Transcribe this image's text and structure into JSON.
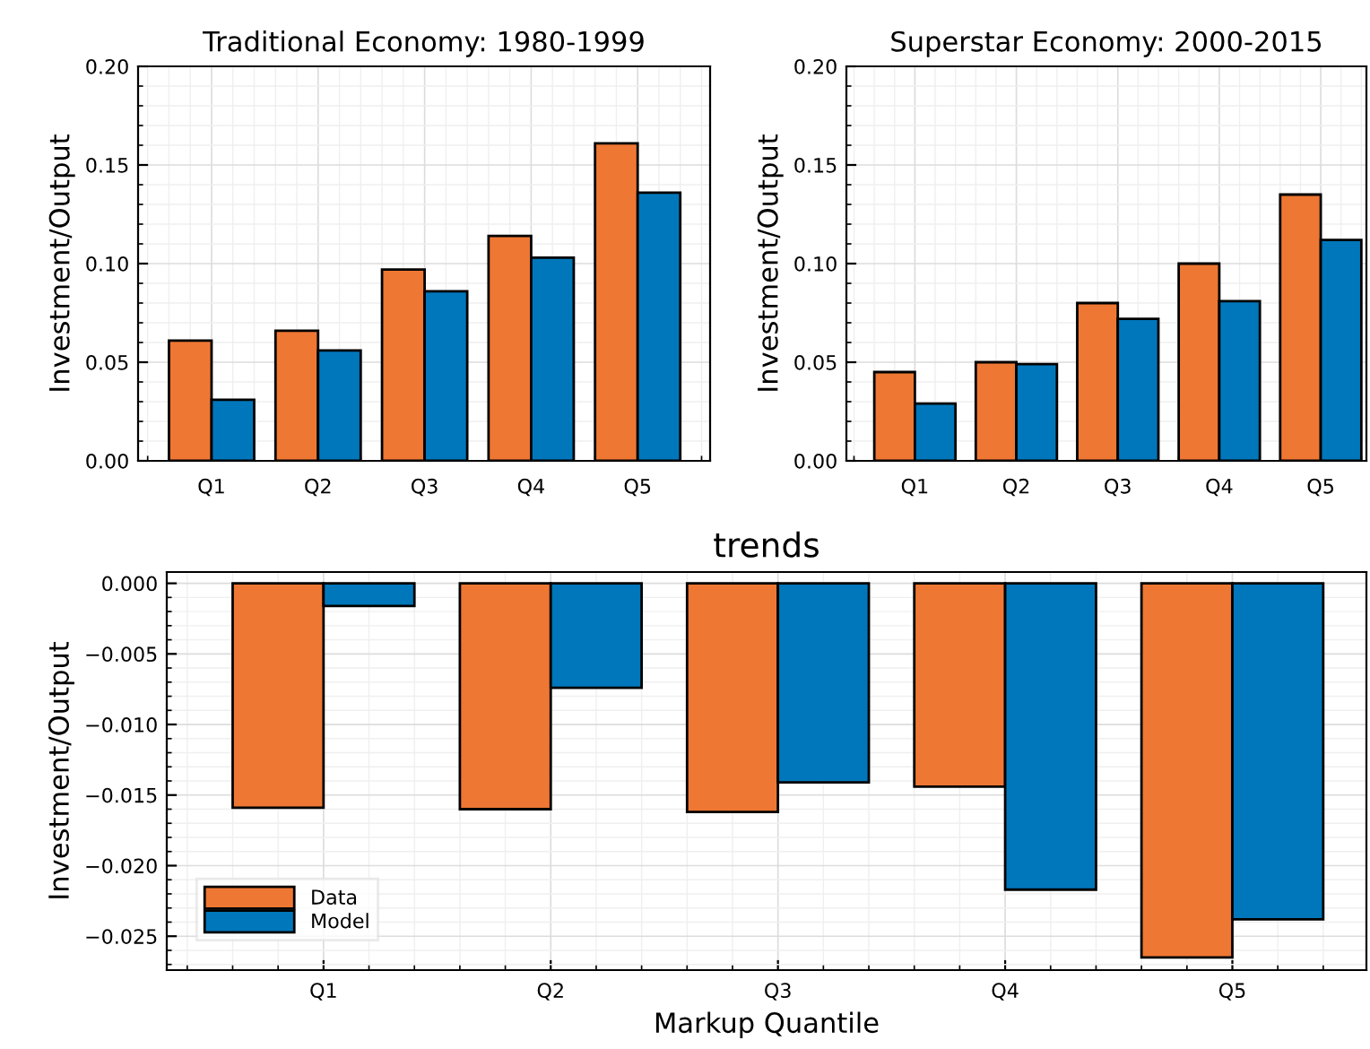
{
  "chart_data": [
    {
      "type": "bar",
      "title": "Traditional Economy: 1980-1999",
      "ylabel": "Investment/Output",
      "categories": [
        "Q1",
        "Q2",
        "Q3",
        "Q4",
        "Q5"
      ],
      "series": [
        {
          "color": "#ee7733",
          "values": [
            0.061,
            0.066,
            0.097,
            0.114,
            0.161
          ]
        },
        {
          "color": "#0077bb",
          "values": [
            0.031,
            0.056,
            0.086,
            0.103,
            0.136
          ]
        }
      ],
      "ylim": [
        0,
        0.2
      ],
      "yticks": [
        {
          "value": 0,
          "label": "0.00"
        },
        {
          "value": 0.05,
          "label": "0.05"
        },
        {
          "value": 0.1,
          "label": "0.10"
        },
        {
          "value": 0.15,
          "label": "0.15"
        },
        {
          "value": 0.2,
          "label": "0.20"
        }
      ],
      "grid": true
    },
    {
      "type": "bar",
      "title": "Superstar Economy: 2000-2015",
      "ylabel": "Investment/Output",
      "categories": [
        "Q1",
        "Q2",
        "Q3",
        "Q4",
        "Q5"
      ],
      "series": [
        {
          "color": "#ee7733",
          "values": [
            0.045,
            0.05,
            0.08,
            0.1,
            0.135
          ]
        },
        {
          "color": "#0077bb",
          "values": [
            0.029,
            0.049,
            0.072,
            0.081,
            0.112
          ]
        }
      ],
      "ylim": [
        0,
        0.2
      ],
      "yticks": [
        {
          "value": 0,
          "label": "0.00"
        },
        {
          "value": 0.05,
          "label": "0.05"
        },
        {
          "value": 0.1,
          "label": "0.10"
        },
        {
          "value": 0.15,
          "label": "0.15"
        },
        {
          "value": 0.2,
          "label": "0.20"
        }
      ],
      "grid": true
    },
    {
      "type": "bar",
      "title": "trends",
      "xlabel": "Markup Quantile",
      "ylabel": "Investment/Output",
      "categories": [
        "Q1",
        "Q2",
        "Q3",
        "Q4",
        "Q5"
      ],
      "series": [
        {
          "name": "Data",
          "color": "#ee7733",
          "values": [
            -0.0159,
            -0.016,
            -0.0162,
            -0.0144,
            -0.0265
          ]
        },
        {
          "name": "Model",
          "color": "#0077bb",
          "values": [
            -0.0016,
            -0.0074,
            -0.0141,
            -0.0217,
            -0.0238
          ]
        }
      ],
      "ylim": [
        -0.0274,
        0.0008
      ],
      "yticks": [
        {
          "value": -0.025,
          "label": "−0.025"
        },
        {
          "value": -0.02,
          "label": "−0.020"
        },
        {
          "value": -0.015,
          "label": "−0.015"
        },
        {
          "value": -0.01,
          "label": "−0.010"
        },
        {
          "value": -0.005,
          "label": "−0.005"
        },
        {
          "value": 0,
          "label": "0.000"
        }
      ],
      "grid": true,
      "legend": "bottom left"
    }
  ]
}
